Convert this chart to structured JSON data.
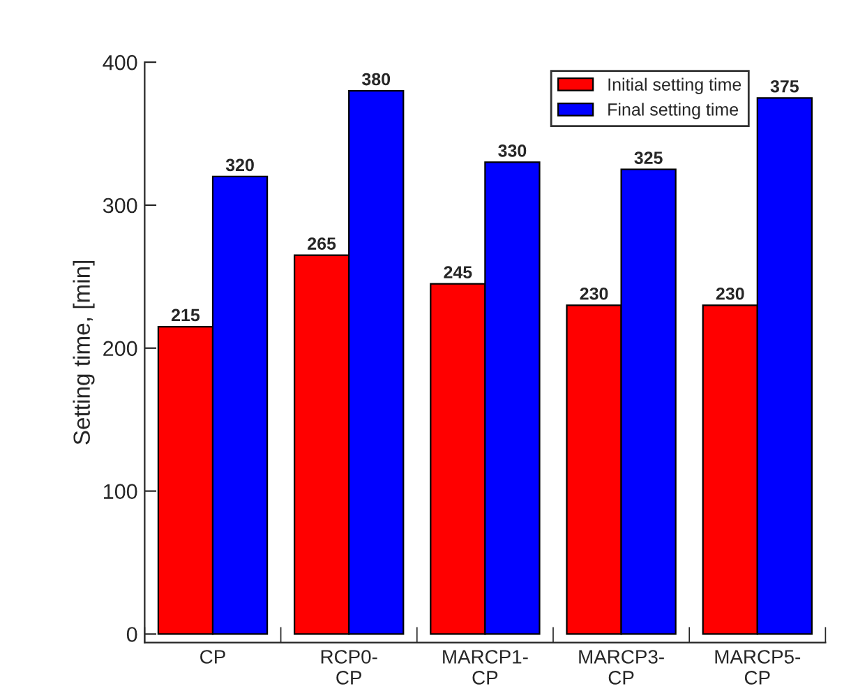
{
  "chart_data": {
    "type": "bar",
    "ylabel": "Setting time, [min]",
    "categories": [
      "CP",
      "RCP0-\nCP",
      "MARCP1-\nCP",
      "MARCP3-\nCP",
      "MARCP5-\nCP"
    ],
    "series": [
      {
        "name": "Initial setting time",
        "color": "#ff0000",
        "values": [
          215,
          265,
          245,
          230,
          230
        ]
      },
      {
        "name": "Final setting time",
        "color": "#0000ff",
        "values": [
          320,
          380,
          330,
          325,
          375
        ]
      }
    ],
    "ylim": [
      -6,
      400
    ],
    "yticks": [
      0,
      100,
      200,
      300,
      400
    ],
    "grid": false,
    "legend": "top right",
    "data_labels": true
  }
}
